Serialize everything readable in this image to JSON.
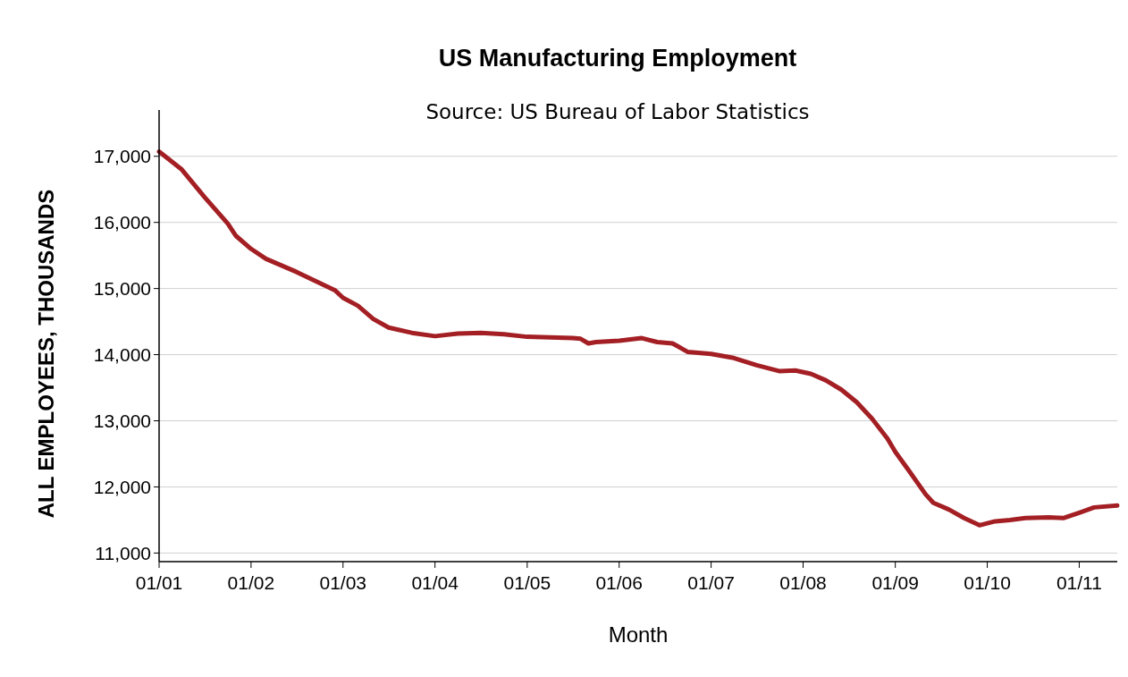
{
  "chart_data": {
    "type": "line",
    "title": "US Manufacturing Employment",
    "annotations": [
      "Source: US Bureau of Labor Statistics"
    ],
    "xlabel": "Month",
    "ylabel": "ALL EMPLOYEES, THOUSANDS",
    "x": [
      "2001-01",
      "2001-04",
      "2001-07",
      "2001-10",
      "2001-11",
      "2002-01",
      "2002-03",
      "2002-07",
      "2002-12",
      "2003-01",
      "2003-03",
      "2003-05",
      "2003-07",
      "2003-10",
      "2004-01",
      "2004-04",
      "2004-07",
      "2004-10",
      "2005-01",
      "2005-07",
      "2005-08",
      "2005-09",
      "2005-10",
      "2006-01",
      "2006-04",
      "2006-06",
      "2006-08",
      "2006-10",
      "2007-01",
      "2007-04",
      "2007-07",
      "2007-10",
      "2007-12",
      "2008-02",
      "2008-04",
      "2008-06",
      "2008-08",
      "2008-10",
      "2008-12",
      "2009-01",
      "2009-03",
      "2009-05",
      "2009-06",
      "2009-08",
      "2009-10",
      "2009-12",
      "2010-02",
      "2010-04",
      "2010-06",
      "2010-09",
      "2010-11",
      "2011-01",
      "2011-03",
      "2011-06"
    ],
    "series": [
      {
        "color": "#a31f24",
        "values": [
          17070,
          16800,
          16380,
          15980,
          15800,
          15600,
          15450,
          15250,
          14970,
          14860,
          14740,
          14540,
          14410,
          14330,
          14280,
          14320,
          14330,
          14310,
          14270,
          14250,
          14240,
          14170,
          14190,
          14210,
          14250,
          14190,
          14170,
          14040,
          14010,
          13950,
          13840,
          13750,
          13760,
          13710,
          13610,
          13470,
          13280,
          13030,
          12730,
          12530,
          12220,
          11890,
          11760,
          11660,
          11530,
          11420,
          11480,
          11500,
          11530,
          11540,
          11530,
          11610,
          11690,
          11720
        ]
      }
    ],
    "xlim": [
      "2001-01",
      "2011-06"
    ],
    "xticks": [
      {
        "value": "2001-01",
        "label": "01/01"
      },
      {
        "value": "2002-01",
        "label": "01/02"
      },
      {
        "value": "2003-01",
        "label": "01/03"
      },
      {
        "value": "2004-01",
        "label": "01/04"
      },
      {
        "value": "2005-01",
        "label": "01/05"
      },
      {
        "value": "2006-01",
        "label": "01/06"
      },
      {
        "value": "2007-01",
        "label": "01/07"
      },
      {
        "value": "2008-01",
        "label": "01/08"
      },
      {
        "value": "2009-01",
        "label": "01/09"
      },
      {
        "value": "2010-01",
        "label": "01/10"
      },
      {
        "value": "2011-01",
        "label": "01/11"
      }
    ],
    "ylim": [
      10870,
      17700
    ],
    "yticks": [
      {
        "value": 11000,
        "label": "11,000"
      },
      {
        "value": 12000,
        "label": "12,000"
      },
      {
        "value": 13000,
        "label": "13,000"
      },
      {
        "value": 14000,
        "label": "14,000"
      },
      {
        "value": 15000,
        "label": "15,000"
      },
      {
        "value": 16000,
        "label": "16,000"
      },
      {
        "value": 17000,
        "label": "17,000"
      }
    ],
    "grid": "y",
    "marker": "none",
    "line_style": "solid"
  }
}
